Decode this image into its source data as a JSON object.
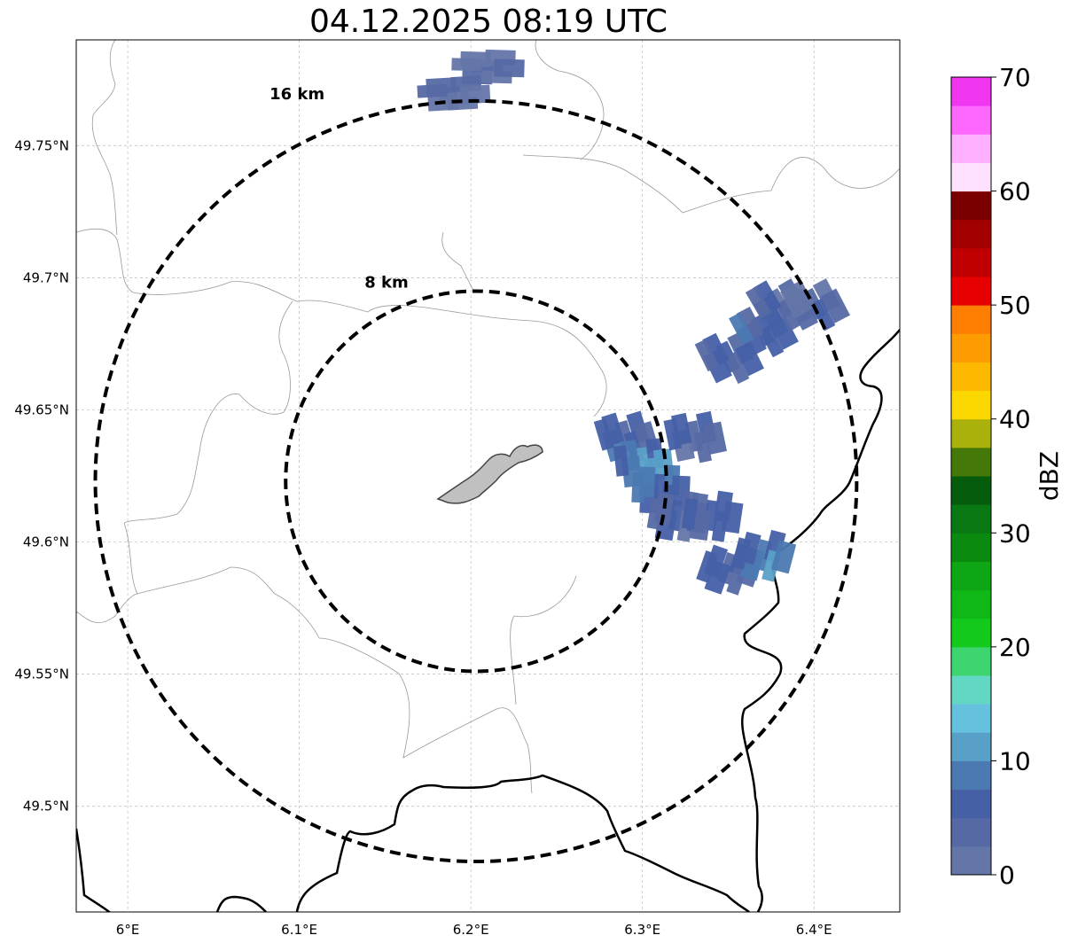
{
  "title": "04.12.2025 08:19 UTC",
  "map": {
    "lon_range": [
      5.97,
      6.45
    ],
    "lat_range": [
      49.46,
      49.79
    ],
    "lon_ticks": [
      {
        "value": 6.0,
        "label": "6°E"
      },
      {
        "value": 6.1,
        "label": "6.1°E"
      },
      {
        "value": 6.2,
        "label": "6.2°E"
      },
      {
        "value": 6.3,
        "label": "6.3°E"
      },
      {
        "value": 6.4,
        "label": "6.4°E"
      }
    ],
    "lat_ticks": [
      {
        "value": 49.5,
        "label": "49.5°N"
      },
      {
        "value": 49.55,
        "label": "49.55°N"
      },
      {
        "value": 49.6,
        "label": "49.6°N"
      },
      {
        "value": 49.65,
        "label": "49.65°N"
      },
      {
        "value": 49.7,
        "label": "49.7°N"
      },
      {
        "value": 49.75,
        "label": "49.75°N"
      }
    ],
    "gridlines": true,
    "center": {
      "lon": 6.203,
      "lat": 49.623
    },
    "range_rings": [
      {
        "label": "8 km",
        "radius_km": 8
      },
      {
        "label": "16 km",
        "radius_km": 16
      }
    ]
  },
  "colorbar": {
    "unit": "dBZ",
    "min": 0,
    "max": 70,
    "ticks": [
      0,
      10,
      20,
      30,
      40,
      50,
      60,
      70
    ],
    "colors": [
      "#6475a8",
      "#5669a4",
      "#4660a6",
      "#4b79b2",
      "#58a0c8",
      "#66c1de",
      "#62d8c4",
      "#3ed46f",
      "#13c91c",
      "#10b817",
      "#0ea614",
      "#0a8a0e",
      "#097812",
      "#065c0d",
      "#447808",
      "#aab10b",
      "#fcd700",
      "#fcb900",
      "#fd9b00",
      "#fd7e00",
      "#e60000",
      "#c00000",
      "#a30000",
      "#7a0000",
      "#ffe0ff",
      "#ffb1ff",
      "#ff68ff",
      "#f036f0"
    ]
  },
  "chart_data": {
    "type": "heatmap",
    "title": "04.12.2025 08:19 UTC",
    "colorbar_label": "dBZ",
    "value_range": [
      0,
      70
    ],
    "echo_region": "reflectivity mostly 0–10 dBZ in a NE–SW band east of the radar, approx. 6.28–6.41°E, 49.58–49.70°N",
    "cells": [
      {
        "lon": 6.29,
        "lat": 49.64,
        "dbz": 6
      },
      {
        "lon": 6.3,
        "lat": 49.63,
        "dbz": 9
      },
      {
        "lon": 6.31,
        "lat": 49.62,
        "dbz": 7
      },
      {
        "lon": 6.32,
        "lat": 49.61,
        "dbz": 4
      },
      {
        "lon": 6.34,
        "lat": 49.61,
        "dbz": 5
      },
      {
        "lon": 6.35,
        "lat": 49.59,
        "dbz": 5
      },
      {
        "lon": 6.37,
        "lat": 49.595,
        "dbz": 8
      },
      {
        "lon": 6.33,
        "lat": 49.64,
        "dbz": 4
      },
      {
        "lon": 6.35,
        "lat": 49.67,
        "dbz": 5
      },
      {
        "lon": 6.37,
        "lat": 49.68,
        "dbz": 6
      },
      {
        "lon": 6.38,
        "lat": 49.69,
        "dbz": 4
      },
      {
        "lon": 6.4,
        "lat": 49.69,
        "dbz": 3
      },
      {
        "lon": 6.19,
        "lat": 49.77,
        "dbz": 2
      },
      {
        "lon": 6.21,
        "lat": 49.78,
        "dbz": 2
      }
    ]
  }
}
